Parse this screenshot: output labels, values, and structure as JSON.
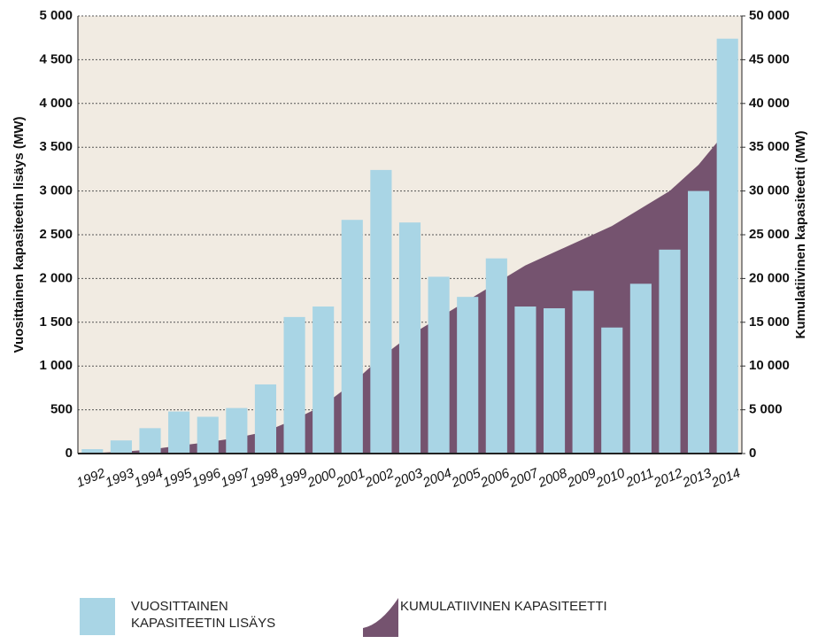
{
  "chart_data": {
    "type": "bar_area",
    "y_label": "Vuosittainen kapasiteetin lisäys (MW)",
    "y2_label": "Kumulatiivinen kapasiteetti (MW)",
    "categories": [
      "1992",
      "1993",
      "1994",
      "1995",
      "1996",
      "1997",
      "1998",
      "1999",
      "2000",
      "2001",
      "2002",
      "2003",
      "2004",
      "2005",
      "2006",
      "2007",
      "2008",
      "2009",
      "2010",
      "2011",
      "2012",
      "2013",
      "2014"
    ],
    "series": [
      {
        "name": "VUOSITTAINEN KAPASITEETIN LISÄYS",
        "type": "bar",
        "color": "#a9d5e5",
        "values": [
          50,
          150,
          290,
          480,
          420,
          520,
          790,
          1560,
          1680,
          2670,
          3240,
          2640,
          2020,
          1790,
          2230,
          1680,
          1660,
          1860,
          1440,
          1940,
          2330,
          3000,
          4740
        ]
      },
      {
        "name": "KUMULATIIVINEN KAPASITEETTI",
        "type": "area",
        "axis": "y2",
        "color": "#75536f",
        "values": [
          50,
          200,
          450,
          900,
          1300,
          1800,
          2500,
          3900,
          5500,
          8000,
          11000,
          13500,
          15500,
          17500,
          19500,
          21500,
          23000,
          24500,
          26000,
          28000,
          30000,
          33000,
          37000
        ]
      }
    ],
    "ylim": [
      0,
      5000
    ],
    "yticks": [
      0,
      500,
      {
        "value": 1000,
        "label": "1 000"
      },
      {
        "value": 1500,
        "label": "1 500"
      },
      {
        "value": 2000,
        "label": "2 000"
      },
      {
        "value": 2500,
        "label": "2 500"
      },
      {
        "value": 3000,
        "label": "3 000"
      },
      {
        "value": 3500,
        "label": "3 500"
      },
      {
        "value": 4000,
        "label": "4 000"
      },
      {
        "value": 4500,
        "label": "4 500"
      },
      {
        "value": 5000,
        "label": "5 000"
      }
    ],
    "y2lim": [
      0,
      50000
    ],
    "y2ticks": [
      0,
      {
        "value": 5000,
        "label": "5 000"
      },
      {
        "value": 10000,
        "label": "10 000"
      },
      {
        "value": 15000,
        "label": "15 000"
      },
      {
        "value": 20000,
        "label": "20 000"
      },
      {
        "value": 25000,
        "label": "25 000"
      },
      {
        "value": 30000,
        "label": "30 000"
      },
      {
        "value": 35000,
        "label": "35 000"
      },
      {
        "value": 40000,
        "label": "40 000"
      },
      {
        "value": 45000,
        "label": "45 000"
      },
      {
        "value": 50000,
        "label": "50 000"
      }
    ],
    "grid": true
  }
}
